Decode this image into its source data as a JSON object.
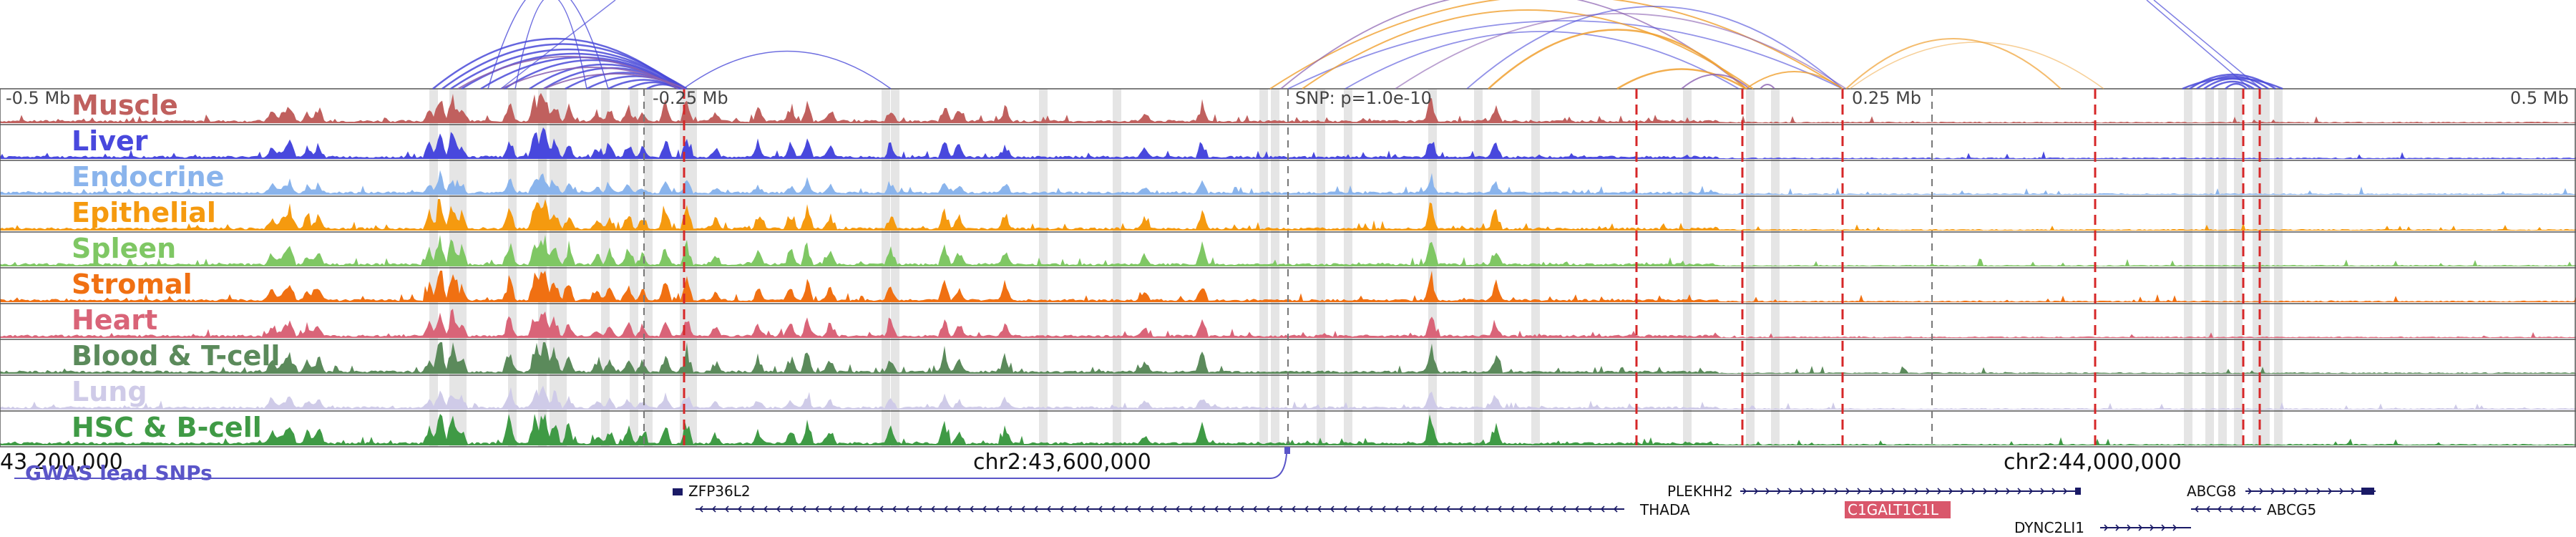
{
  "coord_labels": {
    "left": "-0.5 Mb",
    "mid_left": "-0.25 Mb",
    "snp": "SNP: p=1.0e-10",
    "mid_right": "0.25 Mb",
    "right": "0.5 Mb"
  },
  "axis": {
    "left": "43,200,000",
    "mid": "chr2:43,600,000",
    "right": "chr2:44,000,000"
  },
  "gwas_label": "GWAS lead SNPs",
  "tracks": [
    {
      "id": "muscle",
      "label": "Muscle",
      "color": "#c0605e"
    },
    {
      "id": "liver",
      "label": "Liver",
      "color": "#4848dd"
    },
    {
      "id": "endocrine",
      "label": "Endocrine",
      "color": "#8ab4ec"
    },
    {
      "id": "epithelial",
      "label": "Epithelial",
      "color": "#f59a0f"
    },
    {
      "id": "spleen",
      "label": "Spleen",
      "color": "#7fc764"
    },
    {
      "id": "stromal",
      "label": "Stromal",
      "color": "#f07012"
    },
    {
      "id": "heart",
      "label": "Heart",
      "color": "#d96478"
    },
    {
      "id": "blood",
      "label": "Blood & T-cell",
      "color": "#5b8a5b"
    },
    {
      "id": "lung",
      "label": "Lung",
      "color": "#cfcbe8"
    },
    {
      "id": "hsc",
      "label": "HSC & B-cell",
      "color": "#3f9a45"
    }
  ],
  "genes": [
    {
      "name": "ZFP36L2",
      "strand": "none"
    },
    {
      "name": "THADA",
      "strand": "-"
    },
    {
      "name": "PLEKHH2",
      "strand": "+"
    },
    {
      "name": "C1GALT1C1L",
      "strand": "+",
      "highlight": true
    },
    {
      "name": "DYNC2LI1",
      "strand": "+"
    },
    {
      "name": "ABCG8",
      "strand": "+"
    },
    {
      "name": "ABCG5",
      "strand": "-"
    }
  ],
  "colors": {
    "gene": "#1a1a66",
    "highlight_gene": "#d9576b",
    "gwas": "#5a55c8",
    "red_dash": "#d62728",
    "shade": "#dcdcdc",
    "arc_blue": "#4a4ad8",
    "arc_orange": "#f0a030",
    "arc_purple": "#8a5fb0"
  }
}
